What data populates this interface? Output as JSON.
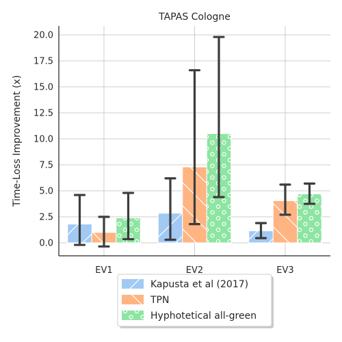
{
  "chart_data": {
    "type": "bar",
    "title": "TAPAS Cologne",
    "xlabel": "",
    "ylabel": "Time-Loss Improvement (x)",
    "categories": [
      "EV1",
      "EV2",
      "EV3"
    ],
    "ylim": [
      -1.3,
      20.9
    ],
    "yticks": [
      "0.0",
      "2.5",
      "5.0",
      "7.5",
      "10.0",
      "12.5",
      "15.0",
      "17.5",
      "20.0"
    ],
    "ytick_values": [
      0,
      2.5,
      5,
      7.5,
      10,
      12.5,
      15,
      17.5,
      20
    ],
    "grid": true,
    "legend_position": "bottom-center",
    "series": [
      {
        "name": "Kapusta et al (2017)",
        "color": "#a1c9f4",
        "pattern": "diagonal-lines",
        "values": [
          1.8,
          2.85,
          1.15
        ],
        "error_low": [
          -0.2,
          0.3,
          0.45
        ],
        "error_high": [
          4.6,
          6.2,
          1.9
        ]
      },
      {
        "name": "TPN",
        "color": "#ffb482",
        "pattern": "back-diagonal-lines",
        "values": [
          1.0,
          7.3,
          4.05
        ],
        "error_low": [
          -0.35,
          1.8,
          2.7
        ],
        "error_high": [
          2.5,
          16.6,
          5.6
        ]
      },
      {
        "name": "Hyphotetical all-green",
        "color": "#8de5a1",
        "pattern": "circles",
        "values": [
          2.4,
          10.5,
          4.7
        ],
        "error_low": [
          0.35,
          4.4,
          3.75
        ],
        "error_high": [
          4.8,
          19.8,
          5.7
        ]
      }
    ]
  }
}
